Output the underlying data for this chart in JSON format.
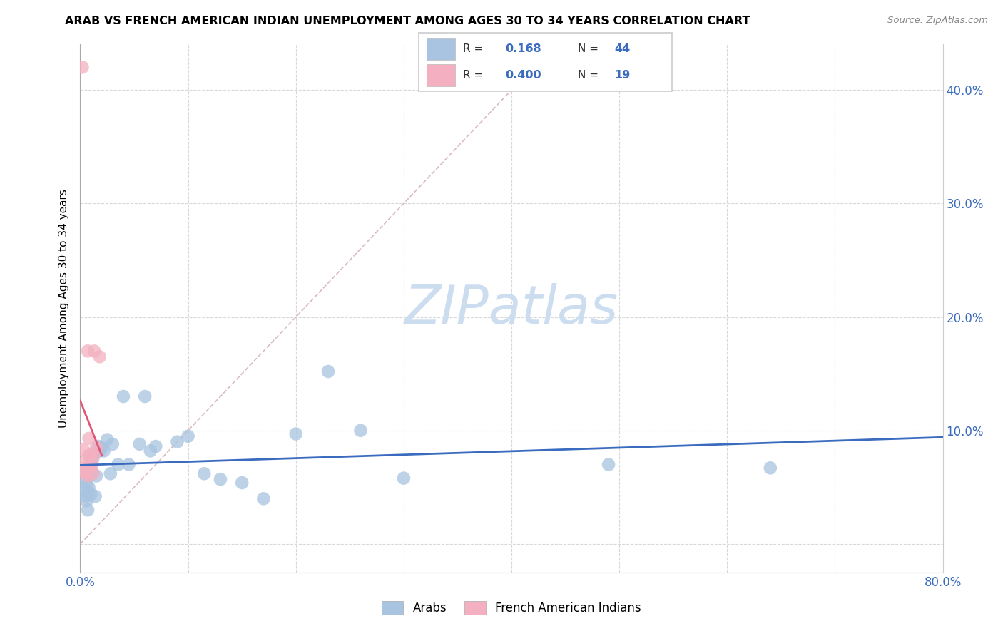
{
  "title": "ARAB VS FRENCH AMERICAN INDIAN UNEMPLOYMENT AMONG AGES 30 TO 34 YEARS CORRELATION CHART",
  "source": "Source: ZipAtlas.com",
  "ylabel": "Unemployment Among Ages 30 to 34 years",
  "xlim": [
    0,
    0.8
  ],
  "ylim": [
    -0.025,
    0.44
  ],
  "arab_R": 0.168,
  "arab_N": 44,
  "french_R": 0.4,
  "french_N": 19,
  "arab_color": "#a8c4e0",
  "arab_line_color": "#3a6bbf",
  "french_color": "#f4b0c0",
  "french_line_color": "#e05878",
  "diag_color": "#d0a8b0",
  "watermark_color": "#ccddf0",
  "arab_x": [
    0.003,
    0.004,
    0.005,
    0.005,
    0.006,
    0.006,
    0.007,
    0.007,
    0.008,
    0.008,
    0.009,
    0.01,
    0.01,
    0.011,
    0.012,
    0.013,
    0.014,
    0.015,
    0.017,
    0.018,
    0.02,
    0.022,
    0.025,
    0.028,
    0.03,
    0.035,
    0.04,
    0.045,
    0.055,
    0.06,
    0.065,
    0.07,
    0.09,
    0.1,
    0.115,
    0.13,
    0.15,
    0.17,
    0.2,
    0.23,
    0.26,
    0.3,
    0.49,
    0.64
  ],
  "arab_y": [
    0.058,
    0.048,
    0.062,
    0.042,
    0.038,
    0.052,
    0.03,
    0.044,
    0.05,
    0.06,
    0.068,
    0.072,
    0.044,
    0.064,
    0.076,
    0.08,
    0.042,
    0.06,
    0.086,
    0.082,
    0.085,
    0.082,
    0.092,
    0.062,
    0.088,
    0.07,
    0.13,
    0.07,
    0.088,
    0.13,
    0.082,
    0.086,
    0.09,
    0.095,
    0.062,
    0.057,
    0.054,
    0.04,
    0.097,
    0.152,
    0.1,
    0.058,
    0.07,
    0.067
  ],
  "french_x": [
    0.002,
    0.003,
    0.003,
    0.004,
    0.005,
    0.005,
    0.006,
    0.007,
    0.007,
    0.008,
    0.008,
    0.009,
    0.01,
    0.011,
    0.012,
    0.013,
    0.014,
    0.015,
    0.018
  ],
  "french_y": [
    0.42,
    0.083,
    0.063,
    0.067,
    0.073,
    0.063,
    0.063,
    0.06,
    0.17,
    0.093,
    0.078,
    0.078,
    0.068,
    0.072,
    0.062,
    0.17,
    0.08,
    0.085,
    0.165
  ]
}
